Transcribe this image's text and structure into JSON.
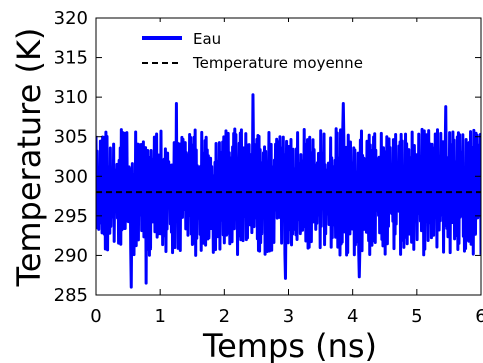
{
  "chart_data": {
    "type": "line",
    "xlabel": "Temps (ns)",
    "ylabel": "Temperature (K)",
    "xlim": [
      0,
      6
    ],
    "ylim": [
      285,
      320
    ],
    "xticks": [
      0,
      1,
      2,
      3,
      4,
      5,
      6
    ],
    "yticks": [
      285,
      290,
      295,
      300,
      305,
      310,
      315,
      320
    ],
    "grid": false,
    "legend_position": "top-left",
    "series": [
      {
        "name": "Eau",
        "style": "solid",
        "color": "#0000ff",
        "mean": 298,
        "typical_range": [
          290,
          306
        ],
        "extremes": [
          {
            "x": 0.55,
            "y": 286.0
          },
          {
            "x": 0.78,
            "y": 286.5
          },
          {
            "x": 2.45,
            "y": 310.3
          },
          {
            "x": 1.25,
            "y": 309.2
          },
          {
            "x": 3.85,
            "y": 309.2
          },
          {
            "x": 5.45,
            "y": 308.8
          },
          {
            "x": 2.95,
            "y": 287.1
          },
          {
            "x": 4.1,
            "y": 287.3
          }
        ]
      },
      {
        "name": "Temperature moyenne",
        "style": "dashed",
        "color": "#000000",
        "x": [
          0,
          6
        ],
        "y": [
          298,
          298
        ]
      }
    ]
  }
}
